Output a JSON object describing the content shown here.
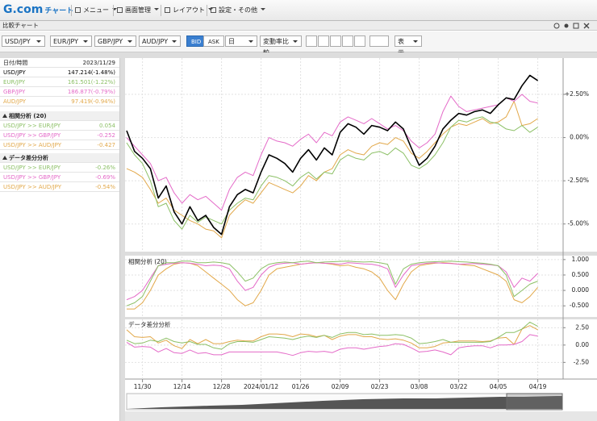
{
  "toolbar": {
    "logo": "G.com",
    "logo_sub": "チャート",
    "menus": [
      "メニュー",
      "画面管理",
      "レイアウト",
      "設定・その他"
    ]
  },
  "window": {
    "title": "比較チャート"
  },
  "controls": {
    "pairs": [
      "USD/JPY",
      "EUR/JPY",
      "GBP/JPY",
      "AUD/JPY"
    ],
    "price": [
      "BID",
      "ASK"
    ],
    "period": "日",
    "mode": "変動率比較",
    "view": "表示"
  },
  "panel": {
    "date_label": "日付/時間",
    "date": "2023/11/29",
    "rates": [
      "147.214(-1.48%)",
      "161.501(-1.22%)",
      "186.877(-0.79%)",
      "97.419(-0.94%)"
    ],
    "correlation": {
      "pairs": [
        "USD/JPY >> EUR/JPY",
        "USD/JPY >> GBP/JPY",
        "USD/JPY >> AUD/JPY"
      ],
      "values": [
        "0.054",
        "-0.252",
        "-0.427"
      ]
    },
    "difference": {
      "pairs": [
        "USD/JPY >> EUR/JPY",
        "USD/JPY >> GBP/JPY",
        "USD/JPY >> AUD/JPY"
      ],
      "values": [
        "-0.26%",
        "-0.69%",
        "-0.54%"
      ]
    }
  },
  "chart_data": [
    {
      "type": "line",
      "grid": true,
      "categories": [
        null,
        null,
        "11/30",
        null,
        null,
        null,
        null,
        "12/14",
        null,
        null,
        null,
        null,
        "12/28",
        null,
        null,
        null,
        null,
        "2024/01/12",
        null,
        null,
        null,
        null,
        "01/26",
        null,
        null,
        null,
        null,
        "02/09",
        null,
        null,
        null,
        null,
        "02/23",
        null,
        null,
        null,
        null,
        "03/08",
        null,
        null,
        null,
        null,
        "03/22",
        null,
        null,
        null,
        null,
        "04/05",
        null,
        null,
        null,
        null,
        "04/19"
      ],
      "ylim": [
        -6.6,
        4.6
      ],
      "yticks": [
        {
          "value": 2.5,
          "label": "+2.50%"
        },
        {
          "value": 0,
          "label": "0.00%"
        },
        {
          "value": -2.5,
          "label": "-2.50%"
        },
        {
          "value": -5,
          "label": "-5.00%"
        }
      ],
      "series": [
        {
          "color": "#000000",
          "values": [
            0.4,
            -0.8,
            -1.2,
            -1.8,
            -3.5,
            -2.8,
            -4.3,
            -5.0,
            -4.0,
            -4.8,
            -4.5,
            -5.2,
            -5.6,
            -4.0,
            -3.3,
            -3.0,
            -3.2,
            -2.0,
            -1.0,
            -1.2,
            -1.5,
            -2.0,
            -1.2,
            -0.7,
            -1.3,
            -0.6,
            -1.0,
            0.3,
            0.8,
            0.6,
            0.2,
            0.7,
            0.6,
            0.4,
            0.9,
            0.5,
            -0.6,
            -1.6,
            -1.2,
            -0.5,
            0.5,
            1.0,
            1.4,
            1.3,
            1.5,
            1.6,
            1.4,
            1.9,
            2.3,
            2.2,
            3.0,
            3.6,
            3.3
          ]
        },
        {
          "color": "#8cc066",
          "values": [
            -0.3,
            -1.0,
            -1.5,
            -2.5,
            -4.0,
            -3.8,
            -4.8,
            -5.3,
            -4.5,
            -4.9,
            -4.6,
            -4.8,
            -5.0,
            -4.2,
            -3.8,
            -3.5,
            -3.6,
            -2.8,
            -2.2,
            -2.3,
            -2.5,
            -2.8,
            -2.3,
            -2.0,
            -2.4,
            -2.0,
            -2.1,
            -1.3,
            -1.0,
            -1.2,
            -1.3,
            -0.9,
            -0.8,
            -1.0,
            -0.6,
            -0.9,
            -1.6,
            -1.8,
            -1.5,
            -1.0,
            -0.3,
            0.6,
            1.0,
            0.9,
            1.1,
            1.2,
            0.9,
            0.8,
            0.5,
            0.4,
            0.7,
            0.3,
            0.6
          ]
        },
        {
          "color": "#e46ac8",
          "values": [
            0.0,
            -0.5,
            -1.0,
            -1.5,
            -2.5,
            -2.3,
            -3.2,
            -3.8,
            -3.3,
            -3.6,
            -3.4,
            -3.8,
            -4.2,
            -3.0,
            -2.3,
            -2.0,
            -2.2,
            -1.0,
            0.0,
            -0.2,
            -0.3,
            -0.5,
            -0.1,
            0.2,
            -0.3,
            0.3,
            0.1,
            0.9,
            1.2,
            1.0,
            0.8,
            1.1,
            0.8,
            0.5,
            0.7,
            0.4,
            -0.2,
            -0.6,
            -0.3,
            0.2,
            1.5,
            2.4,
            1.8,
            1.5,
            1.6,
            1.7,
            1.8,
            1.9,
            2.3,
            2.1,
            2.5,
            2.1,
            2.0
          ]
        },
        {
          "color": "#e2a84a",
          "values": [
            -1.8,
            -2.0,
            -2.3,
            -3.0,
            -3.8,
            -3.5,
            -4.2,
            -4.5,
            -4.8,
            -5.0,
            -5.3,
            -5.4,
            -5.8,
            -4.5,
            -4.0,
            -3.6,
            -3.8,
            -3.2,
            -2.6,
            -2.8,
            -3.0,
            -3.2,
            -2.8,
            -2.2,
            -2.5,
            -2.0,
            -1.8,
            -1.0,
            -0.7,
            -0.9,
            -1.0,
            -0.5,
            -0.3,
            -0.4,
            0.0,
            -0.2,
            -0.9,
            -1.2,
            -0.8,
            -0.3,
            0.2,
            0.6,
            0.8,
            0.7,
            0.9,
            1.1,
            0.8,
            0.9,
            1.2,
            2.1,
            0.7,
            0.8,
            1.1
          ]
        }
      ]
    },
    {
      "type": "line",
      "title": "相関分析 (20)",
      "grid": true,
      "ylim": [
        -0.86,
        1.1
      ],
      "yticks": [
        {
          "value": 1,
          "label": "1.000"
        },
        {
          "value": 0.5,
          "label": "0.500"
        },
        {
          "value": 0,
          "label": "0.000"
        },
        {
          "value": -0.5,
          "label": "-0.500"
        }
      ],
      "series": [
        {
          "color": "#8cc066",
          "values": [
            -0.5,
            -0.4,
            -0.2,
            0.3,
            0.8,
            0.9,
            0.9,
            0.95,
            0.95,
            0.9,
            0.9,
            0.92,
            0.9,
            0.85,
            0.6,
            0.3,
            0.4,
            0.7,
            0.85,
            0.9,
            0.92,
            0.9,
            0.93,
            0.95,
            0.9,
            0.92,
            0.93,
            0.94,
            0.95,
            0.93,
            0.92,
            0.93,
            0.9,
            0.85,
            0.2,
            0.7,
            0.85,
            0.9,
            0.92,
            0.93,
            0.94,
            0.95,
            0.93,
            0.92,
            0.9,
            0.88,
            0.85,
            0.8,
            0.5,
            -0.2,
            0.0,
            0.2,
            0.3
          ]
        },
        {
          "color": "#e46ac8",
          "values": [
            -0.3,
            -0.2,
            0.0,
            0.4,
            0.8,
            0.85,
            0.88,
            0.9,
            0.88,
            0.85,
            0.8,
            0.82,
            0.8,
            0.7,
            0.3,
            0.0,
            0.1,
            0.5,
            0.75,
            0.85,
            0.88,
            0.9,
            0.85,
            0.88,
            0.9,
            0.88,
            0.87,
            0.85,
            0.9,
            0.88,
            0.86,
            0.85,
            0.8,
            0.7,
            0.1,
            0.5,
            0.8,
            0.85,
            0.88,
            0.9,
            0.88,
            0.87,
            0.85,
            0.86,
            0.87,
            0.85,
            0.83,
            0.8,
            0.6,
            0.1,
            0.4,
            0.3,
            0.55
          ]
        },
        {
          "color": "#e2a84a",
          "values": [
            -0.6,
            -0.6,
            -0.4,
            0.0,
            0.5,
            0.7,
            0.85,
            0.9,
            0.88,
            0.8,
            0.6,
            0.4,
            0.2,
            0.0,
            -0.3,
            -0.5,
            -0.4,
            0.0,
            0.5,
            0.7,
            0.75,
            0.8,
            0.85,
            0.88,
            0.9,
            0.88,
            0.85,
            0.8,
            0.82,
            0.75,
            0.7,
            0.6,
            0.4,
            0.0,
            -0.3,
            0.2,
            0.6,
            0.8,
            0.85,
            0.88,
            0.9,
            0.88,
            0.85,
            0.82,
            0.8,
            0.7,
            0.6,
            0.5,
            0.3,
            -0.3,
            -0.4,
            -0.2,
            0.1
          ]
        }
      ]
    },
    {
      "type": "line",
      "title": "データ差分分析",
      "grid": true,
      "ylim": [
        -4.9,
        3.7
      ],
      "yticks": [
        {
          "value": 2.5,
          "label": "2.50"
        },
        {
          "value": 0,
          "label": "0.00"
        },
        {
          "value": -2.5,
          "label": "-2.50"
        }
      ],
      "series": [
        {
          "color": "#8cc066",
          "values": [
            0.7,
            0.2,
            0.3,
            0.7,
            0.5,
            1.0,
            0.5,
            0.3,
            0.5,
            0.1,
            0.1,
            -0.4,
            -0.6,
            0.2,
            0.5,
            0.5,
            0.4,
            0.8,
            1.2,
            1.1,
            1.0,
            0.8,
            1.1,
            1.3,
            1.1,
            1.4,
            1.1,
            1.6,
            1.8,
            1.8,
            1.5,
            1.6,
            1.4,
            1.4,
            1.5,
            1.4,
            1.0,
            0.2,
            0.3,
            0.5,
            0.8,
            0.4,
            0.4,
            0.4,
            0.4,
            0.4,
            0.5,
            1.1,
            1.8,
            1.8,
            2.3,
            3.3,
            2.7
          ]
        },
        {
          "color": "#e46ac8",
          "values": [
            0.4,
            -0.3,
            -0.2,
            -0.3,
            -1.0,
            -0.5,
            -1.1,
            -1.2,
            -0.7,
            -1.2,
            -1.1,
            -1.4,
            -1.4,
            -1.0,
            -1.0,
            -1.0,
            -1.0,
            -1.0,
            -1.0,
            -1.0,
            -1.2,
            -1.5,
            -1.1,
            -0.9,
            -1.0,
            -0.9,
            -1.1,
            -0.6,
            -0.4,
            -0.4,
            -0.6,
            -0.4,
            -0.2,
            -0.1,
            0.2,
            0.1,
            -0.4,
            -1.0,
            -0.9,
            -0.7,
            -1.0,
            -1.4,
            -0.4,
            -0.2,
            -0.1,
            -0.1,
            -0.4,
            0.0,
            0.0,
            0.1,
            0.5,
            1.5,
            1.3
          ]
        },
        {
          "color": "#e2a84a",
          "values": [
            2.2,
            1.2,
            1.1,
            1.2,
            0.3,
            0.7,
            -0.1,
            -0.5,
            0.8,
            0.2,
            0.8,
            0.2,
            0.2,
            0.5,
            0.7,
            0.6,
            0.6,
            1.2,
            1.6,
            1.6,
            1.5,
            1.2,
            1.6,
            1.5,
            1.2,
            1.4,
            0.8,
            1.3,
            1.5,
            1.5,
            1.2,
            1.2,
            0.9,
            0.8,
            0.9,
            0.7,
            0.3,
            -0.4,
            -0.4,
            -0.2,
            0.3,
            0.4,
            0.6,
            0.6,
            0.6,
            0.5,
            0.6,
            1.0,
            1.1,
            0.1,
            2.3,
            2.8,
            2.2
          ]
        }
      ]
    }
  ]
}
